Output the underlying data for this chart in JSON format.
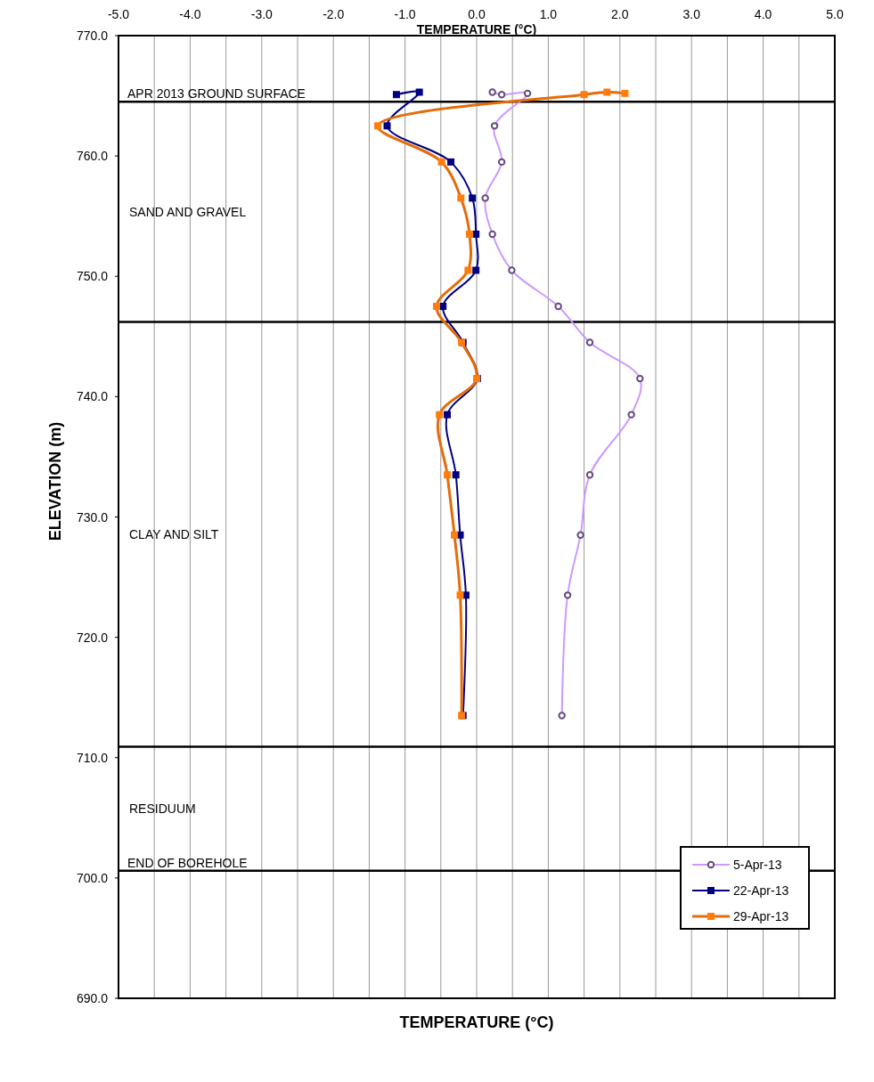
{
  "chart_data": {
    "type": "line",
    "xlabel": "TEMPERATURE (°C)",
    "x2label": "TEMPERATURE (°C)",
    "ylabel": "ELEVATION (m)",
    "xlim": [
      -5,
      5
    ],
    "xticks": [
      {
        "value": -5,
        "label": "-5.0"
      },
      {
        "value": -4.5,
        "label": null
      },
      {
        "value": -4,
        "label": "-4.0"
      },
      {
        "value": -3.5,
        "label": null
      },
      {
        "value": -3,
        "label": "-3.0"
      },
      {
        "value": -2.5,
        "label": null
      },
      {
        "value": -2,
        "label": "-2.0"
      },
      {
        "value": -1.5,
        "label": null
      },
      {
        "value": -1,
        "label": "-1.0"
      },
      {
        "value": -0.5,
        "label": null
      },
      {
        "value": 0,
        "label": "0.0"
      },
      {
        "value": 0.5,
        "label": null
      },
      {
        "value": 1,
        "label": "1.0"
      },
      {
        "value": 1.5,
        "label": null
      },
      {
        "value": 2,
        "label": "2.0"
      },
      {
        "value": 2.5,
        "label": null
      },
      {
        "value": 3,
        "label": "3.0"
      },
      {
        "value": 3.5,
        "label": null
      },
      {
        "value": 4,
        "label": "4.0"
      },
      {
        "value": 4.5,
        "label": null
      },
      {
        "value": 5,
        "label": "5.0"
      }
    ],
    "ylim": [
      690,
      770
    ],
    "yticks": [
      {
        "value": 690,
        "label": "690.0"
      },
      {
        "value": 700,
        "label": "700.0"
      },
      {
        "value": 710,
        "label": "710.0"
      },
      {
        "value": 720,
        "label": "720.0"
      },
      {
        "value": 730,
        "label": "730.0"
      },
      {
        "value": 740,
        "label": "740.0"
      },
      {
        "value": 750,
        "label": "750.0"
      },
      {
        "value": 760,
        "label": "760.0"
      },
      {
        "value": 770,
        "label": "770.0"
      }
    ],
    "grid": "x",
    "legend": "bottom right",
    "series": [
      {
        "name": "5-Apr-13",
        "color": "#cc99ff",
        "marker": "circle",
        "x": [
          0.22,
          0.35,
          0.71,
          0.25,
          0.35,
          0.12,
          0.22,
          0.49,
          1.14,
          1.58,
          2.28,
          2.16,
          1.58,
          1.45,
          1.27,
          1.19
        ],
        "values": [
          765.3,
          765.1,
          765.2,
          762.5,
          759.5,
          756.5,
          753.5,
          750.5,
          747.5,
          744.5,
          741.5,
          738.5,
          733.5,
          728.5,
          723.5,
          713.5
        ]
      },
      {
        "name": "22-Apr-13",
        "color": "#000080",
        "marker": "square",
        "x": [
          -1.12,
          -0.8,
          -1.25,
          -0.36,
          -0.06,
          -0.01,
          -0.01,
          -0.47,
          -0.19,
          0.01,
          -0.41,
          -0.29,
          -0.23,
          -0.15,
          -0.19
        ],
        "values": [
          765.1,
          765.3,
          762.5,
          759.5,
          756.5,
          753.5,
          750.5,
          747.5,
          744.5,
          741.5,
          738.5,
          733.5,
          728.5,
          723.5,
          713.5
        ]
      },
      {
        "name": "29-Apr-13",
        "color": "#e46c0a",
        "marker": "square",
        "x": [
          2.07,
          1.82,
          1.5,
          -1.38,
          -0.49,
          -0.22,
          -0.1,
          -0.12,
          -0.56,
          -0.21,
          0.0,
          -0.52,
          -0.41,
          -0.31,
          -0.23,
          -0.21
        ],
        "values": [
          765.2,
          765.3,
          765.1,
          762.5,
          759.5,
          756.5,
          753.5,
          750.5,
          747.5,
          744.5,
          741.5,
          738.5,
          733.5,
          728.5,
          723.5,
          713.5
        ]
      }
    ],
    "ref_lines": [
      {
        "axis": "y",
        "value": 764.5,
        "label": "APR 2013 GROUND SURFACE"
      },
      {
        "axis": "y",
        "value": 746.2,
        "label": null
      },
      {
        "axis": "y",
        "value": 710.9,
        "label": null
      },
      {
        "axis": "y",
        "value": 700.6,
        "label": "END OF BOREHOLE"
      }
    ],
    "annotations": [
      "SAND AND GRAVEL",
      "CLAY AND SILT",
      "RESIDUUM"
    ]
  }
}
